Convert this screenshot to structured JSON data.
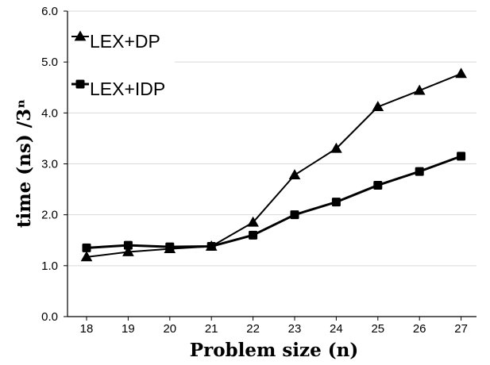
{
  "chart_data": {
    "type": "line",
    "title": "",
    "xlabel": "Problem size (n)",
    "ylabel": "time (ns) /3ⁿ",
    "x": [
      18,
      19,
      20,
      21,
      22,
      23,
      24,
      25,
      26,
      27
    ],
    "ylim": [
      0,
      6
    ],
    "yticks": [
      "0.0",
      "1.0",
      "2.0",
      "3.0",
      "4.0",
      "5.0",
      "6.0"
    ],
    "grid": "horizontal",
    "legend_position": "top-left",
    "series": [
      {
        "name": "LEX+DP",
        "marker": "triangle",
        "color": "#000000",
        "values": [
          1.17,
          1.27,
          1.33,
          1.38,
          1.85,
          2.78,
          3.3,
          4.12,
          4.44,
          4.77
        ]
      },
      {
        "name": "LEX+IDP",
        "marker": "square",
        "color": "#000000",
        "values": [
          1.35,
          1.4,
          1.37,
          1.38,
          1.6,
          2.0,
          2.25,
          2.58,
          2.85,
          3.15
        ]
      }
    ]
  }
}
